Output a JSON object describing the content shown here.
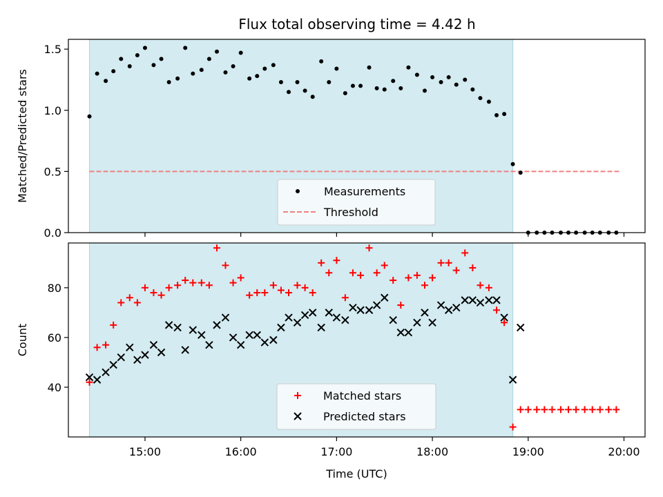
{
  "chart_data": [
    {
      "type": "scatter",
      "title": "Flux total observing time = 4.42 h",
      "ylabel": "Matched/Predicted stars",
      "xlabel": "",
      "ylim": [
        0,
        1.58
      ],
      "yticks": [
        0.0,
        0.5,
        1.0,
        1.5
      ],
      "ytick_labels": [
        "0.0",
        "0.5",
        "1.0",
        "1.5"
      ],
      "xlim_hours": [
        14.2,
        20.22
      ],
      "xticks_hours": [
        15,
        16,
        17,
        18,
        19,
        20
      ],
      "xtick_labels": [],
      "shaded_region_hours": [
        14.42,
        18.84
      ],
      "shaded_color": "#d3ebf1",
      "legend_position": "lower center",
      "threshold": {
        "name": "Threshold",
        "y": 0.5,
        "x_range_hours": [
          14.42,
          19.95
        ],
        "color": "#f08080"
      },
      "series": [
        {
          "name": "Measurements",
          "color": "#000000",
          "points": [
            [
              14.42,
              0.95
            ],
            [
              14.5,
              1.3
            ],
            [
              14.59,
              1.24
            ],
            [
              14.67,
              1.32
            ],
            [
              14.75,
              1.42
            ],
            [
              14.84,
              1.36
            ],
            [
              14.92,
              1.45
            ],
            [
              15.0,
              1.51
            ],
            [
              15.09,
              1.37
            ],
            [
              15.17,
              1.42
            ],
            [
              15.25,
              1.23
            ],
            [
              15.34,
              1.26
            ],
            [
              15.42,
              1.51
            ],
            [
              15.5,
              1.3
            ],
            [
              15.59,
              1.33
            ],
            [
              15.67,
              1.42
            ],
            [
              15.75,
              1.48
            ],
            [
              15.84,
              1.31
            ],
            [
              15.92,
              1.36
            ],
            [
              16.0,
              1.47
            ],
            [
              16.09,
              1.26
            ],
            [
              16.17,
              1.28
            ],
            [
              16.25,
              1.34
            ],
            [
              16.34,
              1.37
            ],
            [
              16.42,
              1.23
            ],
            [
              16.5,
              1.15
            ],
            [
              16.59,
              1.23
            ],
            [
              16.67,
              1.16
            ],
            [
              16.75,
              1.11
            ],
            [
              16.84,
              1.4
            ],
            [
              16.92,
              1.23
            ],
            [
              17.0,
              1.34
            ],
            [
              17.09,
              1.14
            ],
            [
              17.17,
              1.2
            ],
            [
              17.25,
              1.2
            ],
            [
              17.34,
              1.35
            ],
            [
              17.42,
              1.18
            ],
            [
              17.5,
              1.17
            ],
            [
              17.59,
              1.24
            ],
            [
              17.67,
              1.18
            ],
            [
              17.75,
              1.35
            ],
            [
              17.84,
              1.29
            ],
            [
              17.92,
              1.16
            ],
            [
              18.0,
              1.27
            ],
            [
              18.09,
              1.23
            ],
            [
              18.17,
              1.27
            ],
            [
              18.25,
              1.21
            ],
            [
              18.34,
              1.25
            ],
            [
              18.42,
              1.17
            ],
            [
              18.5,
              1.1
            ],
            [
              18.59,
              1.07
            ],
            [
              18.67,
              0.96
            ],
            [
              18.75,
              0.97
            ],
            [
              18.84,
              0.56
            ],
            [
              18.92,
              0.49
            ],
            [
              19.0,
              0.0
            ],
            [
              19.09,
              0.0
            ],
            [
              19.17,
              0.0
            ],
            [
              19.25,
              0.0
            ],
            [
              19.34,
              0.0
            ],
            [
              19.42,
              0.0
            ],
            [
              19.5,
              0.0
            ],
            [
              19.59,
              0.0
            ],
            [
              19.67,
              0.0
            ],
            [
              19.75,
              0.0
            ],
            [
              19.84,
              0.0
            ],
            [
              19.92,
              0.0
            ]
          ]
        }
      ]
    },
    {
      "type": "scatter",
      "title": "",
      "ylabel": "Count",
      "xlabel": "Time (UTC)",
      "ylim": [
        20,
        98
      ],
      "yticks": [
        40,
        60,
        80
      ],
      "ytick_labels": [
        "40",
        "60",
        "80"
      ],
      "xlim_hours": [
        14.2,
        20.22
      ],
      "xticks_hours": [
        15,
        16,
        17,
        18,
        19,
        20
      ],
      "xtick_labels": [
        "15:00",
        "16:00",
        "17:00",
        "18:00",
        "19:00",
        "20:00"
      ],
      "shaded_region_hours": [
        14.42,
        18.84
      ],
      "shaded_color": "#d3ebf1",
      "legend_position": "lower center",
      "series": [
        {
          "name": "Matched stars",
          "color": "#ff0000",
          "marker": "plus",
          "points": [
            [
              14.42,
              42
            ],
            [
              14.5,
              56
            ],
            [
              14.59,
              57
            ],
            [
              14.67,
              65
            ],
            [
              14.75,
              74
            ],
            [
              14.84,
              76
            ],
            [
              14.92,
              74
            ],
            [
              15.0,
              80
            ],
            [
              15.09,
              78
            ],
            [
              15.17,
              77
            ],
            [
              15.25,
              80
            ],
            [
              15.34,
              81
            ],
            [
              15.42,
              83
            ],
            [
              15.5,
              82
            ],
            [
              15.59,
              82
            ],
            [
              15.67,
              81
            ],
            [
              15.75,
              96
            ],
            [
              15.84,
              89
            ],
            [
              15.92,
              82
            ],
            [
              16.0,
              84
            ],
            [
              16.09,
              77
            ],
            [
              16.17,
              78
            ],
            [
              16.25,
              78
            ],
            [
              16.34,
              81
            ],
            [
              16.42,
              79
            ],
            [
              16.5,
              78
            ],
            [
              16.59,
              81
            ],
            [
              16.67,
              80
            ],
            [
              16.75,
              78
            ],
            [
              16.84,
              90
            ],
            [
              16.92,
              86
            ],
            [
              17.0,
              91
            ],
            [
              17.09,
              76
            ],
            [
              17.17,
              86
            ],
            [
              17.25,
              85
            ],
            [
              17.34,
              96
            ],
            [
              17.42,
              86
            ],
            [
              17.5,
              89
            ],
            [
              17.59,
              83
            ],
            [
              17.67,
              73
            ],
            [
              17.75,
              84
            ],
            [
              17.84,
              85
            ],
            [
              17.92,
              81
            ],
            [
              18.0,
              84
            ],
            [
              18.09,
              90
            ],
            [
              18.17,
              90
            ],
            [
              18.25,
              87
            ],
            [
              18.34,
              94
            ],
            [
              18.42,
              88
            ],
            [
              18.5,
              81
            ],
            [
              18.59,
              80
            ],
            [
              18.67,
              71
            ],
            [
              18.75,
              66
            ],
            [
              18.84,
              24
            ],
            [
              18.92,
              31
            ],
            [
              19.0,
              31
            ],
            [
              19.09,
              31
            ],
            [
              19.17,
              31
            ],
            [
              19.25,
              31
            ],
            [
              19.34,
              31
            ],
            [
              19.42,
              31
            ],
            [
              19.5,
              31
            ],
            [
              19.59,
              31
            ],
            [
              19.67,
              31
            ],
            [
              19.75,
              31
            ],
            [
              19.84,
              31
            ],
            [
              19.92,
              31
            ]
          ]
        },
        {
          "name": "Predicted stars",
          "color": "#000000",
          "marker": "x",
          "points": [
            [
              14.42,
              44
            ],
            [
              14.5,
              43
            ],
            [
              14.59,
              46
            ],
            [
              14.67,
              49
            ],
            [
              14.75,
              52
            ],
            [
              14.84,
              56
            ],
            [
              14.92,
              51
            ],
            [
              15.0,
              53
            ],
            [
              15.09,
              57
            ],
            [
              15.17,
              54
            ],
            [
              15.25,
              65
            ],
            [
              15.34,
              64
            ],
            [
              15.42,
              55
            ],
            [
              15.5,
              63
            ],
            [
              15.59,
              61
            ],
            [
              15.67,
              57
            ],
            [
              15.75,
              65
            ],
            [
              15.84,
              68
            ],
            [
              15.92,
              60
            ],
            [
              16.0,
              57
            ],
            [
              16.09,
              61
            ],
            [
              16.17,
              61
            ],
            [
              16.25,
              58
            ],
            [
              16.34,
              59
            ],
            [
              16.42,
              64
            ],
            [
              16.5,
              68
            ],
            [
              16.59,
              66
            ],
            [
              16.67,
              69
            ],
            [
              16.75,
              70
            ],
            [
              16.84,
              64
            ],
            [
              16.92,
              70
            ],
            [
              17.0,
              68
            ],
            [
              17.09,
              67
            ],
            [
              17.17,
              72
            ],
            [
              17.25,
              71
            ],
            [
              17.34,
              71
            ],
            [
              17.42,
              73
            ],
            [
              17.5,
              76
            ],
            [
              17.59,
              67
            ],
            [
              17.67,
              62
            ],
            [
              17.75,
              62
            ],
            [
              17.84,
              66
            ],
            [
              17.92,
              70
            ],
            [
              18.0,
              66
            ],
            [
              18.09,
              73
            ],
            [
              18.17,
              71
            ],
            [
              18.25,
              72
            ],
            [
              18.34,
              75
            ],
            [
              18.42,
              75
            ],
            [
              18.5,
              74
            ],
            [
              18.59,
              75
            ],
            [
              18.67,
              75
            ],
            [
              18.75,
              68
            ],
            [
              18.84,
              43
            ],
            [
              18.92,
              64
            ]
          ]
        }
      ]
    }
  ]
}
